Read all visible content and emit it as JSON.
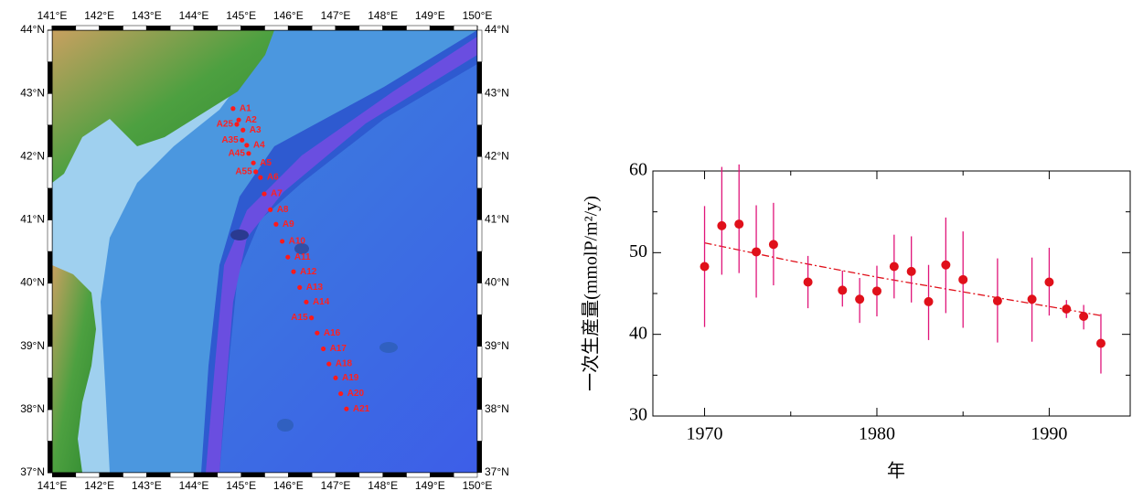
{
  "chart_data": [
    {
      "type": "scatter",
      "labels": [
        "A1",
        "A2",
        "A25",
        "A3",
        "A35",
        "A4",
        "A45",
        "A5",
        "A55",
        "A6",
        "A7",
        "A8",
        "A9",
        "A10",
        "A11",
        "A12",
        "A13",
        "A14",
        "A15",
        "A16",
        "A17",
        "A18",
        "A19",
        "A20",
        "A21"
      ],
      "x": [
        144.83,
        144.95,
        144.91,
        145.04,
        145.02,
        145.12,
        145.16,
        145.26,
        145.31,
        145.41,
        145.49,
        145.62,
        145.74,
        145.87,
        145.99,
        146.11,
        146.24,
        146.38,
        146.49,
        146.61,
        146.74,
        146.86,
        147.0,
        147.11,
        147.23
      ],
      "values": [
        42.76,
        42.58,
        42.51,
        42.42,
        42.26,
        42.18,
        42.05,
        41.9,
        41.76,
        41.67,
        41.41,
        41.16,
        40.93,
        40.66,
        40.41,
        40.18,
        39.93,
        39.7,
        39.45,
        39.21,
        38.96,
        38.72,
        38.5,
        38.25,
        38.01
      ],
      "color": "#ff1a1a",
      "xlim": [
        141,
        150
      ],
      "ylim": [
        37,
        44
      ],
      "xticks": [
        {
          "value": 141,
          "label": "141°E"
        },
        {
          "value": 142,
          "label": "142°E"
        },
        {
          "value": 143,
          "label": "143°E"
        },
        {
          "value": 144,
          "label": "144°E"
        },
        {
          "value": 145,
          "label": "145°E"
        },
        {
          "value": 146,
          "label": "146°E"
        },
        {
          "value": 147,
          "label": "147°E"
        },
        {
          "value": 148,
          "label": "148°E"
        },
        {
          "value": 149,
          "label": "149°E"
        },
        {
          "value": 150,
          "label": "150°E"
        }
      ],
      "yticks": [
        {
          "value": 37,
          "label": "37°N"
        },
        {
          "value": 38,
          "label": "38°N"
        },
        {
          "value": 39,
          "label": "39°N"
        },
        {
          "value": 40,
          "label": "40°N"
        },
        {
          "value": 41,
          "label": "41°N"
        },
        {
          "value": 42,
          "label": "42°N"
        },
        {
          "value": 43,
          "label": "43°N"
        },
        {
          "value": 44,
          "label": "44°N"
        }
      ]
    },
    {
      "type": "errorbar",
      "ylabel": "一次生産量(mmolP/m²/y)",
      "xlabel": "年",
      "x": [
        1970,
        1971,
        1972,
        1973,
        1974,
        1976,
        1978,
        1979,
        1980,
        1981,
        1982,
        1983,
        1984,
        1985,
        1987,
        1989,
        1990,
        1991,
        1992,
        1993
      ],
      "values": [
        48.3,
        53.3,
        53.5,
        50.1,
        51.0,
        46.4,
        45.4,
        44.3,
        45.3,
        48.3,
        47.7,
        44.0,
        48.5,
        46.7,
        44.1,
        44.3,
        46.4,
        43.1,
        42.2,
        38.9
      ],
      "lower": [
        40.9,
        47.3,
        47.5,
        44.5,
        46.0,
        43.2,
        43.4,
        41.4,
        42.2,
        44.4,
        43.9,
        39.3,
        42.6,
        40.8,
        39.0,
        39.1,
        42.3,
        42.0,
        40.6,
        35.2
      ],
      "upper": [
        55.7,
        60.5,
        60.8,
        55.8,
        56.1,
        49.6,
        47.8,
        46.9,
        48.4,
        52.2,
        52.0,
        48.5,
        54.3,
        52.6,
        49.3,
        49.4,
        50.6,
        44.2,
        43.6,
        42.5
      ],
      "color": "#e0101a",
      "bar_color": "#e0157a",
      "trend": {
        "x": [
          1970,
          1975,
          1980,
          1985,
          1990,
          1993
        ],
        "values": [
          51.2,
          49.0,
          47.0,
          45.2,
          43.4,
          42.3
        ],
        "color": "#e0101a"
      },
      "xlim": [
        1967,
        1994.7
      ],
      "ylim": [
        30,
        60
      ],
      "xticks": [
        1970,
        1980,
        1990
      ],
      "minor_xticks": [
        1975,
        1985
      ],
      "yticks": [
        30,
        40,
        50,
        60
      ],
      "minor_yticks": [
        35,
        45,
        55
      ]
    }
  ]
}
